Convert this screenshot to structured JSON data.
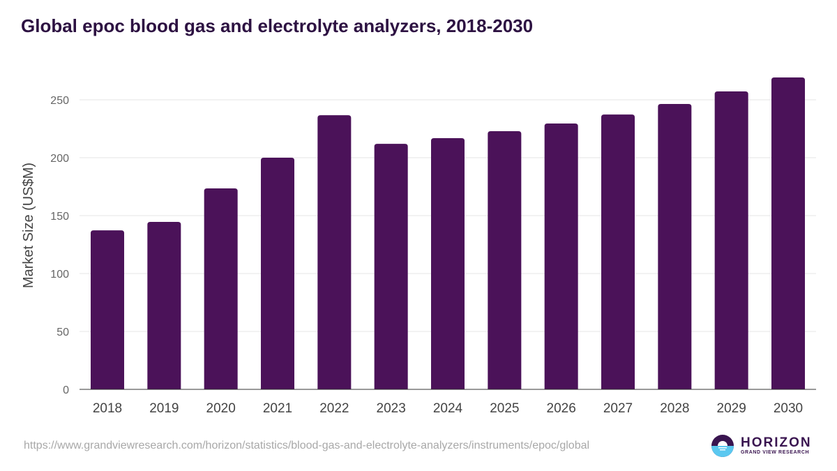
{
  "header": {
    "title": "Global epoc blood gas and electrolyte analyzers, 2018-2030"
  },
  "footer": {
    "source_url": "https://www.grandviewresearch.com/horizon/statistics/blood-gas-and-electrolyte-analyzers/instruments/epoc/global",
    "logo_main": "HORIZON",
    "logo_sub": "GRAND VIEW RESEARCH",
    "logo_icon": "horizon-logo-icon"
  },
  "colors": {
    "bar": "#4b1259",
    "title": "#2d1242",
    "grid": "#e6e6e6",
    "axis": "#333333",
    "logo_top": "#3a1550",
    "logo_bottom": "#5bc8f0"
  },
  "chart_data": {
    "type": "bar",
    "title": "Global epoc blood gas and electrolyte analyzers, 2018-2030",
    "xlabel": "",
    "ylabel": "Market Size (US$M)",
    "categories": [
      "2018",
      "2019",
      "2020",
      "2021",
      "2022",
      "2023",
      "2024",
      "2025",
      "2026",
      "2027",
      "2028",
      "2029",
      "2030"
    ],
    "values": [
      137.3,
      144.6,
      173.5,
      200.0,
      236.7,
      212.0,
      216.9,
      222.9,
      229.5,
      237.3,
      246.4,
      257.2,
      269.3
    ],
    "ylim": [
      0,
      250
    ],
    "yticks": [
      0,
      50,
      100,
      150,
      200,
      250
    ],
    "grid": true,
    "legend": "none"
  }
}
